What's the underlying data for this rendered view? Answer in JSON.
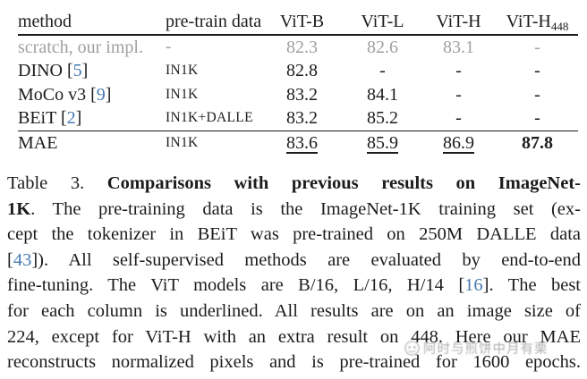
{
  "table": {
    "header": {
      "method": "method",
      "pretrain": "pre-train data",
      "cols": [
        {
          "label": "ViT-B",
          "sub": ""
        },
        {
          "label": "ViT-L",
          "sub": ""
        },
        {
          "label": "ViT-H",
          "sub": ""
        },
        {
          "label": "ViT-H",
          "sub": "448"
        }
      ]
    },
    "rows": [
      {
        "method": "scratch, our impl.",
        "cite": "",
        "pretrain": "-",
        "muted": true,
        "rule_below": false,
        "vals": [
          {
            "v": "82.3"
          },
          {
            "v": "82.6"
          },
          {
            "v": "83.1"
          },
          {
            "v": "-"
          }
        ]
      },
      {
        "method": "DINO",
        "cite": "5",
        "pretrain": "IN1K",
        "muted": false,
        "rule_below": false,
        "vals": [
          {
            "v": "82.8"
          },
          {
            "v": "-"
          },
          {
            "v": "-"
          },
          {
            "v": "-"
          }
        ]
      },
      {
        "method": "MoCo v3",
        "cite": "9",
        "pretrain": "IN1K",
        "muted": false,
        "rule_below": false,
        "vals": [
          {
            "v": "83.2"
          },
          {
            "v": "84.1"
          },
          {
            "v": "-"
          },
          {
            "v": "-"
          }
        ]
      },
      {
        "method": "BEiT",
        "cite": "2",
        "pretrain": "IN1K+DALLE",
        "muted": false,
        "rule_below": true,
        "vals": [
          {
            "v": "83.2"
          },
          {
            "v": "85.2"
          },
          {
            "v": "-"
          },
          {
            "v": "-"
          }
        ]
      },
      {
        "method": "MAE",
        "cite": "",
        "pretrain": "IN1K",
        "muted": false,
        "rule_below": false,
        "vals": [
          {
            "v": "83.6",
            "underline": true
          },
          {
            "v": "85.9",
            "underline": true
          },
          {
            "v": "86.9",
            "underline": true
          },
          {
            "v": "87.8",
            "bold": true
          }
        ]
      }
    ]
  },
  "caption": {
    "lines": [
      {
        "segments": [
          {
            "t": "Table 3.  ",
            "s": "n"
          },
          {
            "t": "Comparisons with previous results on ImageNet-",
            "s": "b"
          }
        ]
      },
      {
        "segments": [
          {
            "t": "1K",
            "s": "b"
          },
          {
            "t": ". The pre-training data is the ImageNet-1K training set (ex-",
            "s": "n"
          }
        ]
      },
      {
        "segments": [
          {
            "t": "cept the tokenizer in BEiT was pre-trained on 250M DALLE data",
            "s": "n"
          }
        ]
      },
      {
        "segments": [
          {
            "t": "[",
            "s": "n"
          },
          {
            "t": "43",
            "s": "c"
          },
          {
            "t": "]).  All self-supervised methods are evaluated by end-to-end",
            "s": "n"
          }
        ]
      },
      {
        "segments": [
          {
            "t": "fine-tuning. The ViT models are B/16, L/16, H/14 [",
            "s": "n"
          },
          {
            "t": "16",
            "s": "c"
          },
          {
            "t": "]. The best",
            "s": "n"
          }
        ]
      },
      {
        "segments": [
          {
            "t": "for each column is underlined. All results are on an image size of",
            "s": "n"
          }
        ]
      },
      {
        "segments": [
          {
            "t": "224, except for ViT-H with an extra result on 448. Here our MAE",
            "s": "n"
          }
        ]
      },
      {
        "segments": [
          {
            "t": "reconstructs normalized pixels and is pre-trained for 1600 epochs.",
            "s": "n"
          }
        ]
      }
    ]
  },
  "watermark": {
    "text": "阿时与煎饼中月有栗"
  },
  "colors": {
    "text": "#1c1c1c",
    "citation_blue": "#4679b2",
    "muted_gray": "#a0a0a0",
    "rule_black": "#1a1a1a",
    "watermark_gray": "#9e9e9e"
  }
}
